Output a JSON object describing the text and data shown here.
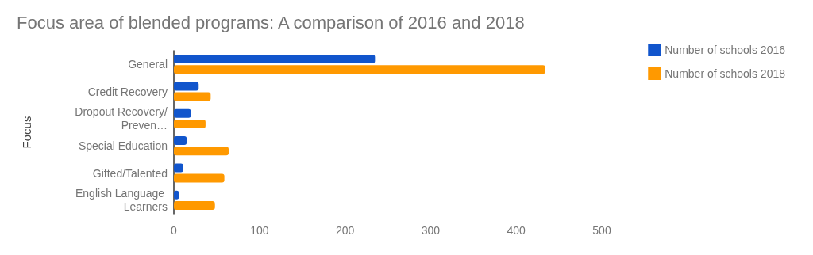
{
  "chart_data": {
    "type": "bar",
    "orientation": "horizontal",
    "title": "Focus area of blended programs: A comparison of 2016 and 2018",
    "ylabel": "Focus",
    "categories": [
      "General",
      "Credit Recovery",
      "Dropout Recovery/Preven…",
      "Special Education",
      "Gifted/Talented",
      "English Language Learners"
    ],
    "series": [
      {
        "name": "Number of schools 2016",
        "color": "#1155cc",
        "values": [
          235,
          29,
          20,
          15,
          11,
          6
        ]
      },
      {
        "name": "Number of schools 2018",
        "color": "#ff9900",
        "values": [
          434,
          43,
          37,
          64,
          59,
          48
        ]
      }
    ],
    "xlim": [
      0,
      500
    ],
    "xticks": [
      0,
      100,
      200,
      300,
      400,
      500
    ],
    "grid": false,
    "legend": "top right"
  }
}
